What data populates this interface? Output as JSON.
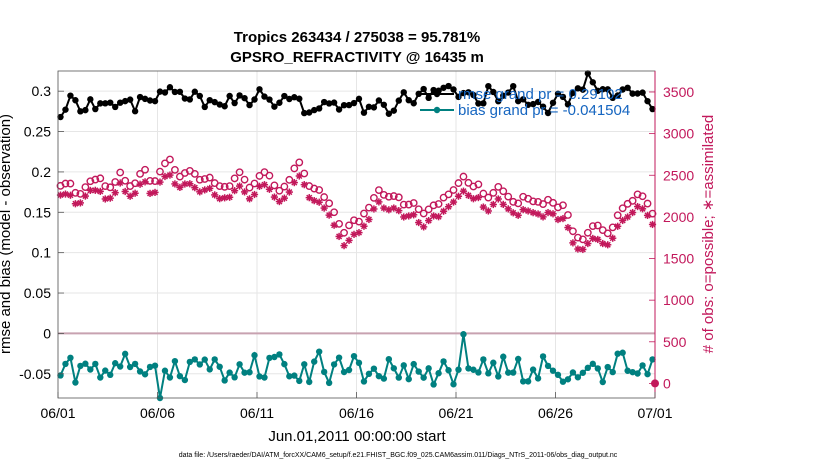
{
  "chart_data": {
    "type": "line",
    "title_line1": "Tropics 263434 / 275038 = 95.781%",
    "title_line2": "GPSRO_REFRACTIVITY @ 16435 m",
    "xlabel": "Jun.01,2011 00:00:00 start",
    "ylabel_left": "rmse and bias (model - observation)",
    "ylabel_right": "# of obs: o=possible; ∗=assimilated",
    "footer": "data file: /Users/raeder/DAI/ATM_forcXX/CAM6_setup/f.e21.FHIST_BGC.f09_025.CAM6assim.011/Diags_NTrS_2011-06/obs_diag_output.nc",
    "x_ticks": [
      "06/01",
      "06/06",
      "06/11",
      "06/16",
      "06/21",
      "06/26",
      "07/01"
    ],
    "x_range_days": [
      0,
      30
    ],
    "y_left_ticks": [
      "-0.05",
      "0",
      "0.05",
      "0.1",
      "0.15",
      "0.2",
      "0.25",
      "0.3"
    ],
    "y_left_range": [
      -0.08,
      0.325
    ],
    "y_right_ticks": [
      "0",
      "500",
      "1000",
      "1500",
      "2000",
      "2500",
      "3000",
      "3500"
    ],
    "y_right_range": [
      -175,
      3752
    ],
    "legend": [
      {
        "label": "rmse grand pr = 0.29102",
        "color": "#000000"
      },
      {
        "label": "bias grand pr = -0.041504",
        "color": "#008080"
      }
    ],
    "colors": {
      "rmse": "#000000",
      "bias": "#008080",
      "obs": "#c2185b",
      "zero_line": "#c8a2b0",
      "legend_text": "#1565c0"
    },
    "series_note": "120 six-hourly analysis times, x in days since Jun.01,2011 00:00",
    "rmse_base": [
      0.276,
      0.282,
      0.289,
      0.285,
      0.279,
      0.282,
      0.286,
      0.283,
      0.277,
      0.282,
      0.289,
      0.287,
      0.286,
      0.291,
      0.286,
      0.282,
      0.288,
      0.297,
      0.289,
      0.289,
      0.296,
      0.297,
      0.299,
      0.299,
      0.293,
      0.286,
      0.295,
      0.305,
      0.298,
      0.287,
      0.283,
      0.289,
      0.285,
      0.282,
      0.287,
      0.291,
      0.293,
      0.29,
      0.29,
      0.297,
      0.298,
      0.292,
      0.288,
      0.285,
      0.285,
      0.287,
      0.29,
      0.288,
      0.283,
      0.28,
      0.277,
      0.278,
      0.278,
      0.279,
      0.284,
      0.285,
      0.281,
      0.277,
      0.276,
      0.279,
      0.283,
      0.28,
      0.276,
      0.278,
      0.282,
      0.28,
      0.277,
      0.28,
      0.287,
      0.293,
      0.293,
      0.291,
      0.294,
      0.3,
      0.299,
      0.294,
      0.294,
      0.298,
      0.299,
      0.298,
      0.298,
      0.302,
      0.305,
      0.3,
      0.291,
      0.292,
      0.301,
      0.301,
      0.295,
      0.296,
      0.301,
      0.301,
      0.293,
      0.288,
      0.289,
      0.289,
      0.284,
      0.279,
      0.279,
      0.284,
      0.289,
      0.289,
      0.287,
      0.29,
      0.298,
      0.305,
      0.307,
      0.306,
      0.307,
      0.306,
      0.299,
      0.294,
      0.299,
      0.307,
      0.308,
      0.301,
      0.295,
      0.292,
      0.288,
      0.284
    ],
    "bias_base": [
      -0.056,
      -0.047,
      -0.045,
      -0.047,
      -0.051,
      -0.05,
      -0.046,
      -0.045,
      -0.053,
      -0.058,
      -0.051,
      -0.039,
      -0.034,
      -0.038,
      -0.046,
      -0.052,
      -0.054,
      -0.054,
      -0.05,
      -0.044,
      -0.042,
      -0.046,
      -0.049,
      -0.047,
      -0.048,
      -0.051,
      -0.046,
      -0.037,
      -0.036,
      -0.042,
      -0.042,
      -0.039,
      -0.043,
      -0.051,
      -0.054,
      -0.049,
      -0.043,
      -0.04,
      -0.037,
      -0.037,
      -0.04,
      -0.042,
      -0.042,
      -0.039,
      -0.038,
      -0.046,
      -0.055,
      -0.054,
      -0.048,
      -0.049,
      -0.05,
      -0.043,
      -0.037,
      -0.042,
      -0.048,
      -0.046,
      -0.039,
      -0.034,
      -0.035,
      -0.042,
      -0.05,
      -0.051,
      -0.045,
      -0.045,
      -0.05,
      -0.048,
      -0.038,
      -0.033,
      -0.042,
      -0.054,
      -0.054,
      -0.047,
      -0.042,
      -0.041,
      -0.045,
      -0.049,
      -0.047,
      -0.045,
      -0.049,
      -0.054,
      -0.051,
      -0.043,
      -0.039,
      -0.04,
      -0.043,
      -0.046,
      -0.045,
      -0.041,
      -0.039,
      -0.043,
      -0.048,
      -0.046,
      -0.043,
      -0.045,
      -0.048,
      -0.046,
      -0.042,
      -0.042,
      -0.044,
      -0.045,
      -0.047,
      -0.05,
      -0.05,
      -0.044,
      -0.041,
      -0.045,
      -0.05,
      -0.05,
      -0.047,
      -0.047,
      -0.045,
      -0.039,
      -0.035,
      -0.037,
      -0.041,
      -0.041,
      -0.038,
      -0.037,
      -0.039,
      -0.04
    ],
    "n_possible": [
      2373,
      2400,
      2400,
      2289,
      2276,
      2357,
      2428,
      2448,
      2463,
      2369,
      2355,
      2419,
      2533,
      2434,
      2370,
      2404,
      2517,
      2566,
      2432,
      2430,
      2544,
      2642,
      2689,
      2565,
      2484,
      2527,
      2553,
      2517,
      2446,
      2455,
      2472,
      2406,
      2369,
      2361,
      2369,
      2462,
      2536,
      2447,
      2352,
      2401,
      2492,
      2537,
      2495,
      2378,
      2314,
      2364,
      2445,
      2582,
      2654,
      2521,
      2370,
      2340,
      2323,
      2238,
      2163,
      2056,
      1916,
      1809,
      1898,
      1960,
      1943,
      2040,
      2111,
      2228,
      2321,
      2264,
      2242,
      2250,
      2235,
      2147,
      2148,
      2167,
      2092,
      2041,
      2090,
      2139,
      2155,
      2231,
      2270,
      2323,
      2406,
      2484,
      2409,
      2365,
      2390,
      2280,
      2232,
      2289,
      2360,
      2308,
      2243,
      2181,
      2162,
      2242,
      2218,
      2186,
      2180,
      2154,
      2206,
      2169,
      2114,
      2140,
      2023,
      1827,
      1751,
      1730,
      1809,
      1889,
      1897,
      1841,
      1802,
      1874,
      2019,
      2104,
      2157,
      2193,
      2270,
      2248,
      2160,
      2039
    ],
    "n_assimilated": [
      2262,
      2274,
      2260,
      2158,
      2168,
      2250,
      2318,
      2319,
      2306,
      2215,
      2225,
      2291,
      2407,
      2305,
      2248,
      2284,
      2392,
      2421,
      2282,
      2294,
      2418,
      2485,
      2502,
      2396,
      2354,
      2395,
      2398,
      2351,
      2301,
      2324,
      2342,
      2264,
      2219,
      2229,
      2236,
      2315,
      2370,
      2300,
      2217,
      2269,
      2367,
      2387,
      2331,
      2238,
      2184,
      2225,
      2298,
      2412,
      2491,
      2387,
      2231,
      2195,
      2176,
      2106,
      2021,
      1900,
      1765,
      1655,
      1718,
      1790,
      1811,
      1888,
      1969,
      2095,
      2180,
      2106,
      2085,
      2106,
      2075,
      1999,
      2011,
      2025,
      1932,
      1880,
      1956,
      2011,
      2002,
      2068,
      2122,
      2178,
      2248,
      2309,
      2258,
      2218,
      2232,
      2118,
      2071,
      2149,
      2215,
      2150,
      2096,
      2049,
      2019,
      2087,
      2071,
      2051,
      2035,
      2000,
      2052,
      2037,
      1968,
      1980,
      1872,
      1688,
      1614,
      1609,
      1680,
      1741,
      1729,
      1680,
      1665,
      1744,
      1887,
      1957,
      1999,
      2052,
      2124,
      2097,
      2018,
      1909
    ],
    "bias_extremes": {
      "min": -0.08,
      "max": -0.001
    },
    "rmse_peak": 0.322
  }
}
